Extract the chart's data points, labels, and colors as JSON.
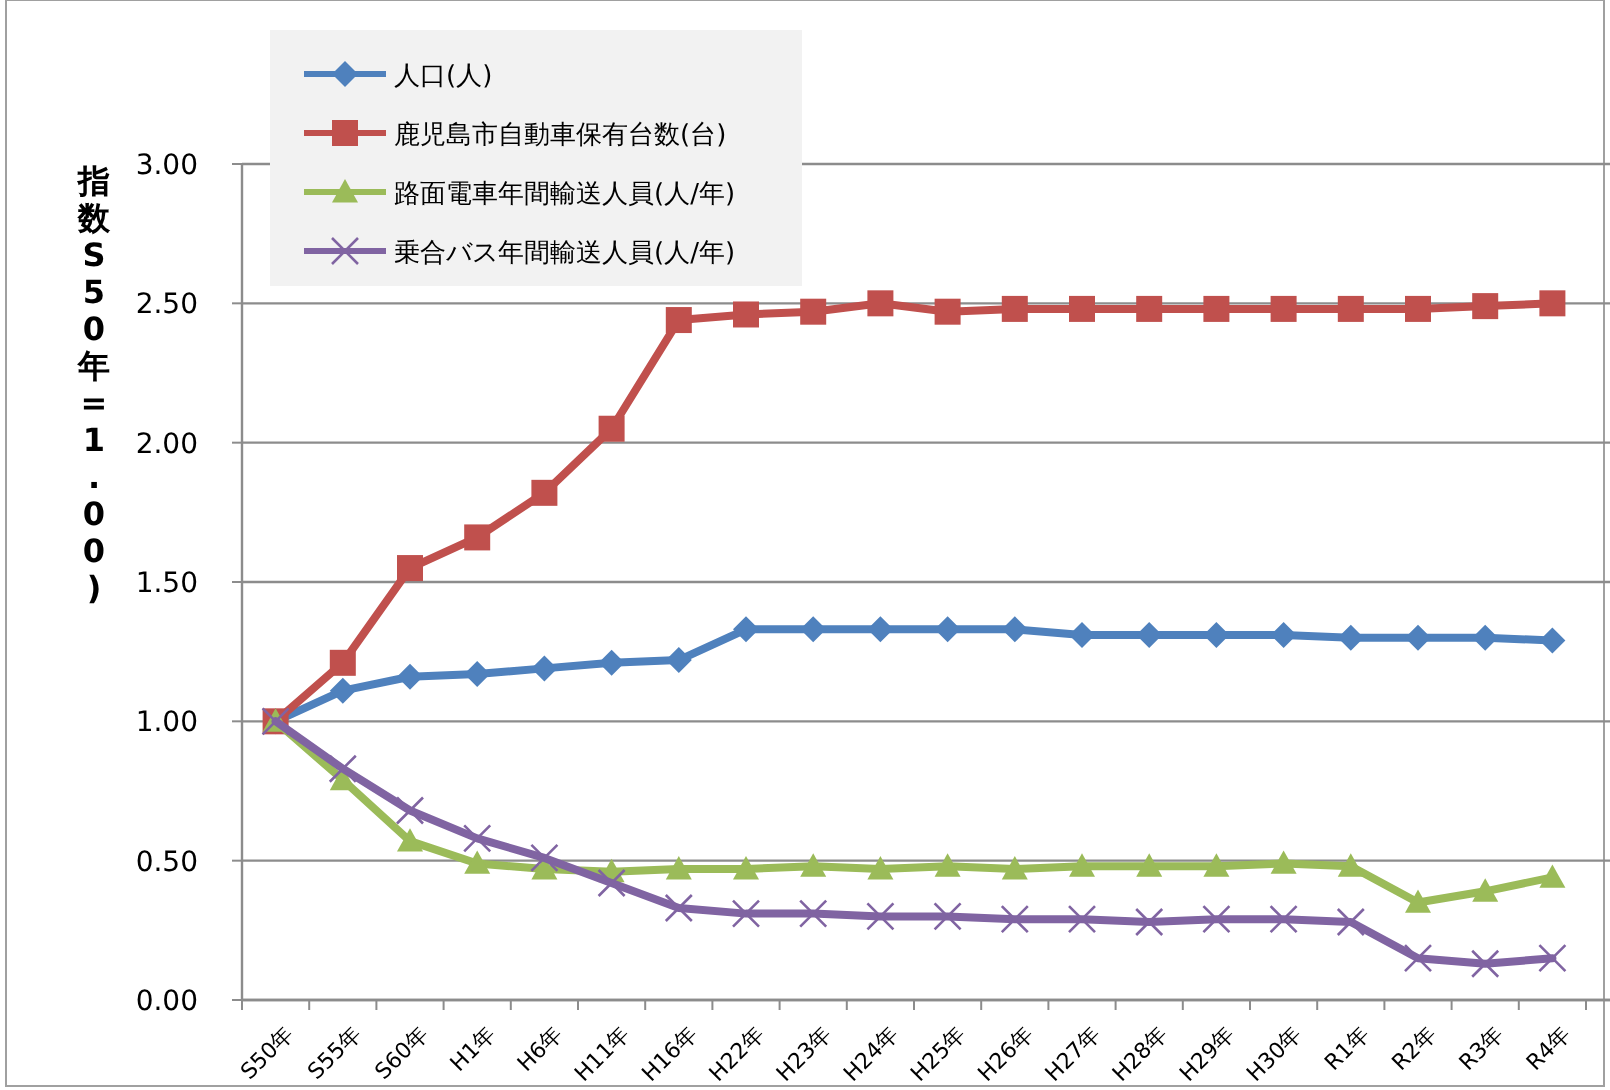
{
  "chart_data": {
    "type": "line",
    "ylabel": "指数S50年=1.00)",
    "categories": [
      "S50年",
      "S55年",
      "S60年",
      "H1年",
      "H6年",
      "H11年",
      "H16年",
      "H22年",
      "H23年",
      "H24年",
      "H25年",
      "H26年",
      "H27年",
      "H28年",
      "H29年",
      "H30年",
      "R1年",
      "R2年",
      "R3年",
      "R4年"
    ],
    "series": [
      {
        "name": "人口(人)",
        "color": "#4f81bd",
        "marker": "diamond",
        "values": [
          1.0,
          1.11,
          1.16,
          1.17,
          1.19,
          1.21,
          1.22,
          1.33,
          1.33,
          1.33,
          1.33,
          1.33,
          1.31,
          1.31,
          1.31,
          1.31,
          1.3,
          1.3,
          1.3,
          1.29
        ]
      },
      {
        "name": "鹿児島市自動車保有台数(台)",
        "color": "#c0504d",
        "marker": "square",
        "values": [
          1.0,
          1.21,
          1.55,
          1.66,
          1.82,
          2.05,
          2.44,
          2.46,
          2.47,
          2.5,
          2.47,
          2.48,
          2.48,
          2.48,
          2.48,
          2.48,
          2.48,
          2.48,
          2.49,
          2.5
        ]
      },
      {
        "name": "路面電車年間輸送人員(人/年)",
        "color": "#9bbb59",
        "marker": "triangle",
        "values": [
          1.0,
          0.79,
          0.57,
          0.49,
          0.47,
          0.46,
          0.47,
          0.47,
          0.48,
          0.47,
          0.48,
          0.47,
          0.48,
          0.48,
          0.48,
          0.49,
          0.48,
          0.35,
          0.39,
          0.44
        ]
      },
      {
        "name": "乗合バス年間輸送人員(人/年)",
        "color": "#8064a2",
        "marker": "cross",
        "values": [
          1.0,
          0.83,
          0.68,
          0.58,
          0.51,
          0.42,
          0.33,
          0.31,
          0.31,
          0.3,
          0.3,
          0.29,
          0.29,
          0.28,
          0.29,
          0.29,
          0.28,
          0.15,
          0.13,
          0.15
        ]
      }
    ],
    "ylim": [
      0,
      3
    ],
    "yticks": [
      {
        "value": 0,
        "label": "0.00"
      },
      {
        "value": 0.5,
        "label": "0.50"
      },
      {
        "value": 1,
        "label": "1.00"
      },
      {
        "value": 1.5,
        "label": "1.50"
      },
      {
        "value": 2,
        "label": "2.00"
      },
      {
        "value": 2.5,
        "label": "2.50"
      },
      {
        "value": 3,
        "label": "3.00"
      }
    ],
    "grid": "y",
    "legend": "top left"
  }
}
